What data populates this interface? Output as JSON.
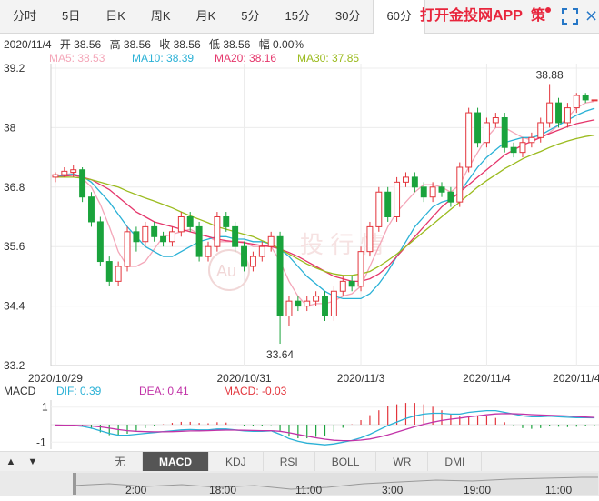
{
  "tabs": [
    "分时",
    "5日",
    "日K",
    "周K",
    "月K",
    "5分",
    "15分",
    "30分",
    "60分"
  ],
  "active_tab": "60分",
  "promo": "打开金投网APP",
  "policy": "策",
  "icons": {
    "fullscreen": "fullscreen-icon",
    "close": "close-icon",
    "up": "up-arrow-icon",
    "down": "down-arrow-icon"
  },
  "info": {
    "date": "2020/11/4",
    "open": "开 38.56",
    "high": "高 38.56",
    "close": "收 38.56",
    "low": "低 38.56",
    "change": "幅 0.00%"
  },
  "ma_legend": [
    {
      "label": "MA5: 38.53",
      "color": "#f4a6b8"
    },
    {
      "label": "MA10: 38.39",
      "color": "#2ab1d6"
    },
    {
      "label": "MA20: 38.16",
      "color": "#e5366b"
    },
    {
      "label": "MA30: 37.85",
      "color": "#9bbb1e"
    }
  ],
  "macd_legend": {
    "title": "MACD",
    "dif": "DIF: 0.39",
    "dea": "DEA: 0.41",
    "macd": "MACD: -0.03"
  },
  "indicator_tabs": [
    "无",
    "MACD",
    "KDJ",
    "RSI",
    "BOLL",
    "WR",
    "DMI"
  ],
  "active_indicator": "MACD",
  "nav_labels": [
    "2:00",
    "18:00",
    "11:00",
    "3:00",
    "19:00",
    "11:00"
  ],
  "colors": {
    "up": "#e3353c",
    "down": "#1aa33c",
    "ma5": "#f4a6b8",
    "ma10": "#2ab1d6",
    "ma20": "#e5366b",
    "ma30": "#9bbb1e",
    "dif": "#2ab1d6",
    "dea": "#c233a8"
  },
  "chart_data": {
    "type": "candlestick",
    "y_axis_ticks": [
      "39.2",
      "38",
      "36.8",
      "35.6",
      "34.4",
      "33.2"
    ],
    "ylim": [
      33.2,
      39.2
    ],
    "x_tick_labels": [
      {
        "label": "2020/10/29",
        "index": 0
      },
      {
        "label": "2020/10/31",
        "index": 21
      },
      {
        "label": "2020/11/3",
        "index": 34
      },
      {
        "label": "2020/11/4",
        "index": 48
      },
      {
        "label": "2020/11/4",
        "index": 58
      }
    ],
    "candles": [
      {
        "o": 37.0,
        "c": 37.05,
        "h": 37.1,
        "l": 36.9
      },
      {
        "o": 37.05,
        "c": 37.12,
        "h": 37.2,
        "l": 37.0
      },
      {
        "o": 37.1,
        "c": 37.15,
        "h": 37.25,
        "l": 37.0
      },
      {
        "o": 37.15,
        "c": 36.6,
        "h": 37.2,
        "l": 36.5
      },
      {
        "o": 36.6,
        "c": 36.1,
        "h": 36.7,
        "l": 36.0
      },
      {
        "o": 36.1,
        "c": 35.3,
        "h": 36.2,
        "l": 35.2
      },
      {
        "o": 35.3,
        "c": 34.9,
        "h": 35.4,
        "l": 34.8
      },
      {
        "o": 34.9,
        "c": 35.2,
        "h": 35.3,
        "l": 34.8
      },
      {
        "o": 35.2,
        "c": 35.9,
        "h": 36.0,
        "l": 35.1
      },
      {
        "o": 35.9,
        "c": 35.7,
        "h": 36.0,
        "l": 35.5
      },
      {
        "o": 35.7,
        "c": 36.0,
        "h": 36.1,
        "l": 35.6
      },
      {
        "o": 36.0,
        "c": 35.8,
        "h": 36.1,
        "l": 35.7
      },
      {
        "o": 35.8,
        "c": 35.7,
        "h": 35.9,
        "l": 35.6
      },
      {
        "o": 35.7,
        "c": 35.9,
        "h": 36.0,
        "l": 35.6
      },
      {
        "o": 35.9,
        "c": 36.2,
        "h": 36.3,
        "l": 35.8
      },
      {
        "o": 36.2,
        "c": 36.0,
        "h": 36.3,
        "l": 35.9
      },
      {
        "o": 36.0,
        "c": 35.4,
        "h": 36.1,
        "l": 35.3
      },
      {
        "o": 35.4,
        "c": 35.6,
        "h": 35.7,
        "l": 35.3
      },
      {
        "o": 35.6,
        "c": 36.2,
        "h": 36.3,
        "l": 35.5
      },
      {
        "o": 36.2,
        "c": 36.0,
        "h": 36.3,
        "l": 35.9
      },
      {
        "o": 36.0,
        "c": 35.6,
        "h": 36.1,
        "l": 35.5
      },
      {
        "o": 35.6,
        "c": 35.2,
        "h": 35.7,
        "l": 35.1
      },
      {
        "o": 35.2,
        "c": 35.4,
        "h": 35.5,
        "l": 35.1
      },
      {
        "o": 35.4,
        "c": 35.6,
        "h": 35.7,
        "l": 35.3
      },
      {
        "o": 35.6,
        "c": 35.8,
        "h": 35.9,
        "l": 35.5
      },
      {
        "o": 35.8,
        "c": 34.2,
        "h": 35.9,
        "l": 33.64
      },
      {
        "o": 34.2,
        "c": 34.5,
        "h": 34.6,
        "l": 34.0
      },
      {
        "o": 34.5,
        "c": 34.4,
        "h": 34.6,
        "l": 34.3
      },
      {
        "o": 34.4,
        "c": 34.5,
        "h": 34.6,
        "l": 34.3
      },
      {
        "o": 34.5,
        "c": 34.6,
        "h": 34.7,
        "l": 34.4
      },
      {
        "o": 34.6,
        "c": 34.2,
        "h": 34.7,
        "l": 34.1
      },
      {
        "o": 34.2,
        "c": 34.7,
        "h": 34.8,
        "l": 34.1
      },
      {
        "o": 34.7,
        "c": 34.9,
        "h": 35.0,
        "l": 34.6
      },
      {
        "o": 34.9,
        "c": 34.8,
        "h": 35.0,
        "l": 34.7
      },
      {
        "o": 34.8,
        "c": 35.5,
        "h": 35.6,
        "l": 34.7
      },
      {
        "o": 35.5,
        "c": 36.0,
        "h": 36.1,
        "l": 35.4
      },
      {
        "o": 36.0,
        "c": 36.7,
        "h": 36.8,
        "l": 35.9
      },
      {
        "o": 36.7,
        "c": 36.2,
        "h": 36.8,
        "l": 36.1
      },
      {
        "o": 36.2,
        "c": 36.9,
        "h": 37.0,
        "l": 36.1
      },
      {
        "o": 36.9,
        "c": 37.0,
        "h": 37.1,
        "l": 36.8
      },
      {
        "o": 37.0,
        "c": 36.8,
        "h": 37.1,
        "l": 36.7
      },
      {
        "o": 36.8,
        "c": 36.6,
        "h": 36.9,
        "l": 36.5
      },
      {
        "o": 36.6,
        "c": 36.8,
        "h": 36.9,
        "l": 36.5
      },
      {
        "o": 36.8,
        "c": 36.7,
        "h": 36.9,
        "l": 36.6
      },
      {
        "o": 36.7,
        "c": 36.5,
        "h": 36.8,
        "l": 36.4
      },
      {
        "o": 36.5,
        "c": 37.2,
        "h": 37.3,
        "l": 36.4
      },
      {
        "o": 37.2,
        "c": 38.3,
        "h": 38.4,
        "l": 37.1
      },
      {
        "o": 38.3,
        "c": 37.7,
        "h": 38.4,
        "l": 37.6
      },
      {
        "o": 37.7,
        "c": 38.1,
        "h": 38.2,
        "l": 37.6
      },
      {
        "o": 38.1,
        "c": 38.2,
        "h": 38.3,
        "l": 38.0
      },
      {
        "o": 38.2,
        "c": 37.6,
        "h": 38.3,
        "l": 37.5
      },
      {
        "o": 37.6,
        "c": 37.5,
        "h": 37.7,
        "l": 37.4
      },
      {
        "o": 37.5,
        "c": 37.7,
        "h": 37.8,
        "l": 37.4
      },
      {
        "o": 37.7,
        "c": 37.8,
        "h": 37.9,
        "l": 37.6
      },
      {
        "o": 37.8,
        "c": 38.1,
        "h": 38.2,
        "l": 37.7
      },
      {
        "o": 38.1,
        "c": 38.5,
        "h": 38.88,
        "l": 38.0
      },
      {
        "o": 38.5,
        "c": 38.1,
        "h": 38.6,
        "l": 38.0
      },
      {
        "o": 38.1,
        "c": 38.4,
        "h": 38.5,
        "l": 38.0
      },
      {
        "o": 38.4,
        "c": 38.65,
        "h": 38.7,
        "l": 38.3
      },
      {
        "o": 38.65,
        "c": 38.56,
        "h": 38.7,
        "l": 38.5
      },
      {
        "o": 38.56,
        "c": 38.56,
        "h": 38.56,
        "l": 38.56
      }
    ],
    "annotations": [
      {
        "label": "38.88",
        "index": 55,
        "value": 38.88,
        "pos": "above"
      },
      {
        "label": "33.64",
        "index": 25,
        "value": 33.64,
        "pos": "below"
      }
    ],
    "ma_series": [
      {
        "name": "MA5",
        "values": [
          37.0,
          37.05,
          37.08,
          36.98,
          36.8,
          36.45,
          36.0,
          35.5,
          35.2,
          35.2,
          35.3,
          35.55,
          35.8,
          35.85,
          35.9,
          35.95,
          35.85,
          35.8,
          35.7,
          35.7,
          35.7,
          35.7,
          35.6,
          35.6,
          35.6,
          35.3,
          34.9,
          34.6,
          34.4,
          34.45,
          34.45,
          34.5,
          34.6,
          34.65,
          34.8,
          35.2,
          35.6,
          36.0,
          36.3,
          36.5,
          36.7,
          36.85,
          36.85,
          36.8,
          36.7,
          36.85,
          37.2,
          37.5,
          37.8,
          38.0,
          38.0,
          37.9,
          37.8,
          37.75,
          37.8,
          37.9,
          38.05,
          38.2,
          38.4,
          38.5,
          38.53
        ]
      },
      {
        "name": "MA10",
        "values": [
          37.0,
          37.04,
          37.06,
          37.02,
          36.9,
          36.7,
          36.5,
          36.25,
          36.0,
          35.8,
          35.6,
          35.5,
          35.4,
          35.4,
          35.5,
          35.6,
          35.7,
          35.75,
          35.8,
          35.8,
          35.75,
          35.75,
          35.7,
          35.7,
          35.65,
          35.55,
          35.4,
          35.2,
          35.0,
          34.85,
          34.7,
          34.6,
          34.55,
          34.55,
          34.55,
          34.65,
          34.85,
          35.1,
          35.4,
          35.7,
          36.0,
          36.2,
          36.4,
          36.5,
          36.55,
          36.7,
          36.95,
          37.2,
          37.4,
          37.55,
          37.7,
          37.75,
          37.8,
          37.8,
          37.85,
          37.95,
          38.05,
          38.15,
          38.25,
          38.33,
          38.39
        ]
      },
      {
        "name": "MA20",
        "values": [
          37.0,
          37.02,
          37.04,
          37.0,
          36.95,
          36.85,
          36.75,
          36.6,
          36.45,
          36.3,
          36.2,
          36.1,
          36.05,
          36.0,
          35.95,
          35.9,
          35.85,
          35.8,
          35.75,
          35.72,
          35.7,
          35.68,
          35.65,
          35.62,
          35.6,
          35.55,
          35.48,
          35.4,
          35.3,
          35.2,
          35.1,
          35.0,
          34.95,
          34.9,
          34.9,
          34.95,
          35.05,
          35.2,
          35.4,
          35.6,
          35.8,
          36.0,
          36.2,
          36.4,
          36.55,
          36.7,
          36.85,
          37.0,
          37.15,
          37.3,
          37.45,
          37.55,
          37.65,
          37.72,
          37.8,
          37.88,
          37.95,
          38.02,
          38.08,
          38.12,
          38.16
        ]
      },
      {
        "name": "MA30",
        "values": [
          37.0,
          37.0,
          37.0,
          36.98,
          36.95,
          36.9,
          36.85,
          36.8,
          36.72,
          36.65,
          36.58,
          36.52,
          36.45,
          36.38,
          36.3,
          36.22,
          36.15,
          36.08,
          36.0,
          35.95,
          35.9,
          35.85,
          35.8,
          35.72,
          35.65,
          35.55,
          35.45,
          35.35,
          35.25,
          35.17,
          35.1,
          35.05,
          35.02,
          35.02,
          35.05,
          35.1,
          35.2,
          35.32,
          35.45,
          35.6,
          35.75,
          35.9,
          36.05,
          36.2,
          36.35,
          36.5,
          36.65,
          36.8,
          36.93,
          37.05,
          37.17,
          37.27,
          37.37,
          37.45,
          37.52,
          37.6,
          37.67,
          37.73,
          37.78,
          37.82,
          37.85
        ]
      }
    ],
    "macd": {
      "y_axis_ticks": [
        "1",
        "-1"
      ],
      "ylim": [
        -1.4,
        1.4
      ],
      "dif": [
        -0.05,
        -0.05,
        -0.05,
        -0.1,
        -0.2,
        -0.35,
        -0.5,
        -0.6,
        -0.6,
        -0.55,
        -0.5,
        -0.45,
        -0.4,
        -0.35,
        -0.3,
        -0.28,
        -0.3,
        -0.3,
        -0.25,
        -0.25,
        -0.3,
        -0.35,
        -0.38,
        -0.38,
        -0.35,
        -0.55,
        -0.8,
        -0.95,
        -1.05,
        -1.1,
        -1.15,
        -1.1,
        -1.0,
        -0.9,
        -0.75,
        -0.55,
        -0.3,
        -0.05,
        0.15,
        0.35,
        0.5,
        0.6,
        0.65,
        0.65,
        0.6,
        0.6,
        0.7,
        0.75,
        0.8,
        0.8,
        0.7,
        0.6,
        0.5,
        0.45,
        0.45,
        0.48,
        0.45,
        0.42,
        0.4,
        0.4,
        0.39
      ],
      "dea": [
        -0.02,
        -0.03,
        -0.03,
        -0.05,
        -0.08,
        -0.13,
        -0.2,
        -0.28,
        -0.34,
        -0.38,
        -0.4,
        -0.41,
        -0.41,
        -0.4,
        -0.38,
        -0.36,
        -0.35,
        -0.34,
        -0.32,
        -0.31,
        -0.31,
        -0.32,
        -0.33,
        -0.34,
        -0.34,
        -0.38,
        -0.46,
        -0.56,
        -0.66,
        -0.75,
        -0.83,
        -0.89,
        -0.91,
        -0.91,
        -0.88,
        -0.82,
        -0.71,
        -0.58,
        -0.43,
        -0.27,
        -0.12,
        0.02,
        0.14,
        0.24,
        0.31,
        0.37,
        0.44,
        0.5,
        0.56,
        0.61,
        0.63,
        0.62,
        0.6,
        0.57,
        0.55,
        0.53,
        0.51,
        0.49,
        0.46,
        0.43,
        0.41
      ],
      "hist": [
        -0.06,
        -0.04,
        -0.04,
        -0.1,
        -0.24,
        -0.44,
        -0.6,
        -0.64,
        -0.52,
        -0.34,
        -0.2,
        -0.08,
        0.02,
        0.1,
        0.16,
        0.16,
        0.1,
        0.08,
        0.14,
        0.12,
        0.02,
        -0.06,
        -0.1,
        -0.08,
        -0.02,
        -0.34,
        -0.68,
        -0.78,
        -0.78,
        -0.7,
        -0.64,
        -0.42,
        -0.18,
        0.02,
        0.26,
        0.54,
        0.82,
        1.06,
        1.16,
        1.24,
        1.24,
        1.16,
        1.02,
        0.82,
        0.58,
        0.46,
        0.52,
        0.5,
        0.48,
        0.38,
        0.14,
        -0.04,
        -0.2,
        -0.24,
        -0.2,
        -0.1,
        -0.12,
        -0.14,
        -0.12,
        -0.06,
        -0.03
      ]
    }
  }
}
